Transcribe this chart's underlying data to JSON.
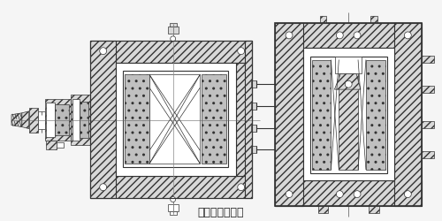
{
  "title": "（三）防爆装置",
  "title_fontsize": 9,
  "bg_color": "#f5f5f5",
  "line_color": "#333333",
  "hatch_fc": "#d8d8d8",
  "white": "#ffffff",
  "fig_width": 5.0,
  "fig_height": 2.5,
  "dpi": 100,
  "lw_thin": 0.5,
  "lw_med": 0.8,
  "lw_thick": 1.2
}
